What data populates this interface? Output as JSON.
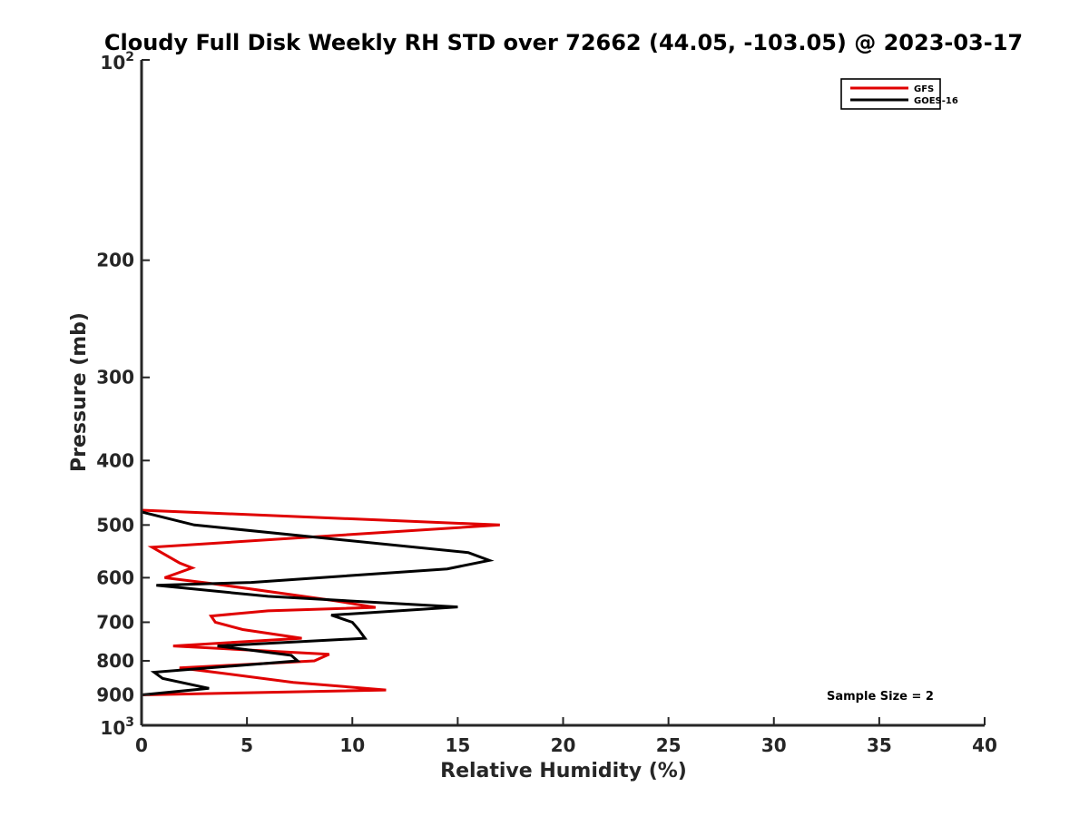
{
  "chart_data": {
    "type": "line",
    "title": "Cloudy Full Disk Weekly RH STD over 72662 (44.05, -103.05) @ 2023-03-17",
    "xlabel": "Relative Humidity (%)",
    "ylabel": "Pressure (mb)",
    "xlim": [
      0,
      40
    ],
    "ylim": [
      100,
      1000
    ],
    "y_scale": "log",
    "y_reversed": true,
    "grid": false,
    "legend_position": "top-right",
    "x_ticks": [
      0,
      5,
      10,
      15,
      20,
      25,
      30,
      35,
      40
    ],
    "x_tick_labels": [
      "0",
      "5",
      "10",
      "15",
      "20",
      "25",
      "30",
      "35",
      "40"
    ],
    "y_ticks": [
      {
        "value": 100,
        "base": "10",
        "exp": "2"
      },
      {
        "value": 200,
        "label": "200"
      },
      {
        "value": 300,
        "label": "300"
      },
      {
        "value": 400,
        "label": "400"
      },
      {
        "value": 500,
        "label": "500"
      },
      {
        "value": 600,
        "label": "600"
      },
      {
        "value": 700,
        "label": "700"
      },
      {
        "value": 800,
        "label": "800"
      },
      {
        "value": 900,
        "label": "900"
      },
      {
        "value": 1000,
        "base": "10",
        "exp": "3"
      }
    ],
    "series": [
      {
        "name": "GFS",
        "color": "#e00000",
        "points": [
          [
            0,
            100
          ],
          [
            0,
            300
          ],
          [
            0,
            475
          ],
          [
            17.0,
            500
          ],
          [
            0.5,
            540
          ],
          [
            1.8,
            570
          ],
          [
            2.4,
            580
          ],
          [
            1.1,
            600
          ],
          [
            3.3,
            612
          ],
          [
            9.2,
            650
          ],
          [
            11.1,
            665
          ],
          [
            6.0,
            673
          ],
          [
            3.3,
            685
          ],
          [
            3.5,
            700
          ],
          [
            4.8,
            718
          ],
          [
            7.6,
            740
          ],
          [
            1.5,
            760
          ],
          [
            8.9,
            782
          ],
          [
            8.2,
            800
          ],
          [
            1.8,
            820
          ],
          [
            3.2,
            830
          ],
          [
            7.2,
            862
          ],
          [
            11.6,
            885
          ],
          [
            0,
            900
          ]
        ]
      },
      {
        "name": "GOES-16",
        "color": "#000000",
        "points": [
          [
            0,
            100
          ],
          [
            0,
            300
          ],
          [
            0,
            478
          ],
          [
            2.5,
            500
          ],
          [
            15.5,
            550
          ],
          [
            16.5,
            565
          ],
          [
            14.5,
            582
          ],
          [
            5.2,
            610
          ],
          [
            0.7,
            616
          ],
          [
            6.0,
            640
          ],
          [
            15.0,
            664
          ],
          [
            9.0,
            683
          ],
          [
            10.0,
            700
          ],
          [
            10.3,
            718
          ],
          [
            10.6,
            740
          ],
          [
            3.6,
            760
          ],
          [
            7.1,
            785
          ],
          [
            7.4,
            800
          ],
          [
            0.6,
            832
          ],
          [
            1.0,
            850
          ],
          [
            3.2,
            880
          ],
          [
            0,
            900
          ]
        ]
      }
    ],
    "annotations": [
      "Sample Size = 2"
    ]
  }
}
